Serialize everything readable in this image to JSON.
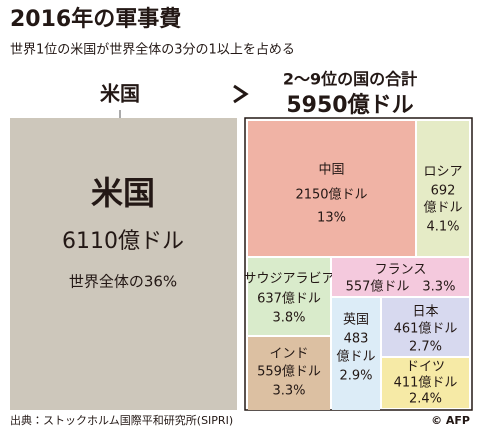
{
  "header": {
    "title": "2016年の軍事費",
    "subtitle": "世界1位の米国が世界全体の3分の1以上を占める"
  },
  "us": {
    "label": "米国",
    "name": "米国",
    "amount": "6110億ドル",
    "share": "世界全体の36%"
  },
  "others": {
    "label": "2～9位の国の合計",
    "total": "5950億ドル",
    "countries": [
      {
        "lines": [
          "中国",
          "2150億ドル",
          "13%"
        ]
      },
      {
        "lines": [
          "ロシア",
          "692",
          "億ドル",
          "4.1%"
        ]
      },
      {
        "lines": [
          "サウジアラビア",
          "637億ドル",
          "3.8%"
        ]
      },
      {
        "lines": [
          "フランス",
          "557億ドル　3.3%"
        ]
      },
      {
        "lines": [
          "英国",
          "483",
          "億ドル",
          "2.9%"
        ]
      },
      {
        "lines": [
          "日本",
          "461億ドル",
          "2.7%"
        ]
      },
      {
        "lines": [
          "ドイツ",
          "411億ドル",
          "2.4%"
        ]
      },
      {
        "lines": [
          "インド",
          "559億ドル",
          "3.3%"
        ]
      }
    ]
  },
  "footer": {
    "source": "出典：ストックホルム国際平和研究所(SIPRI)",
    "credit": "© AFP"
  }
}
